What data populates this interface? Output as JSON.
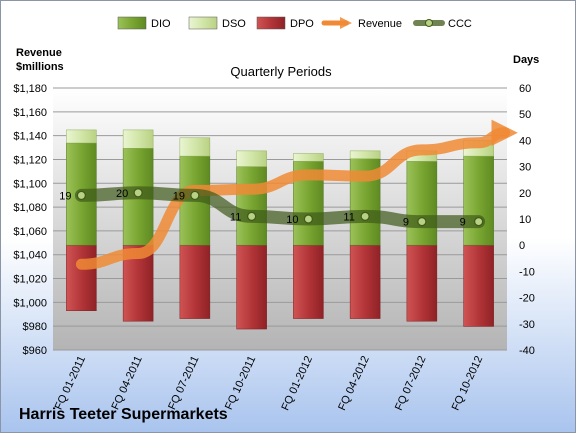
{
  "company": "Harris Teeter Supermarkets",
  "chart_data": {
    "type": "bar",
    "title": "Quarterly Periods",
    "left_axis": {
      "label_line1": "Revenue",
      "label_line2": "$millions",
      "min": 960,
      "max": 1180,
      "step": 20,
      "ticks": [
        "$960",
        "$980",
        "$1,000",
        "$1,020",
        "$1,040",
        "$1,060",
        "$1,080",
        "$1,100",
        "$1,120",
        "$1,140",
        "$1,160",
        "$1,180"
      ]
    },
    "right_axis": {
      "label": "Days",
      "min": -40,
      "max": 60,
      "step": 10,
      "ticks": [
        "-40",
        "-30",
        "-20",
        "-10",
        "0",
        "10",
        "20",
        "30",
        "40",
        "50",
        "60"
      ]
    },
    "categories": [
      "FQ 01-2011",
      "FQ 04-2011",
      "FQ 07-2011",
      "FQ 10-2011",
      "FQ 01-2012",
      "FQ 04-2012",
      "FQ 07-2012",
      "FQ 10-2012"
    ],
    "legend": [
      "DIO",
      "DSO",
      "DPO",
      "Revenue",
      "CCC"
    ],
    "legend_position": "top",
    "series": [
      {
        "name": "DIO",
        "axis": "right",
        "color": "#7da83a",
        "values": [
          39,
          37,
          34,
          30,
          32,
          33,
          32,
          34
        ]
      },
      {
        "name": "DSO",
        "axis": "right",
        "color": "#d5e8b0",
        "values": [
          5,
          7,
          7,
          6,
          3,
          3,
          4,
          6
        ]
      },
      {
        "name": "DPO",
        "axis": "right",
        "color": "#b5383a",
        "values": [
          -25,
          -29,
          -28,
          -32,
          -28,
          -28,
          -29,
          -31
        ]
      },
      {
        "name": "Revenue",
        "axis": "left",
        "color": "#f08a35",
        "values": [
          1032,
          1041,
          1094,
          1095,
          1107,
          1106,
          1128,
          1134
        ]
      },
      {
        "name": "CCC",
        "axis": "right",
        "color": "#4e6b22",
        "values": [
          19,
          20,
          19,
          11,
          10,
          11,
          9,
          9
        ],
        "labels": [
          "19",
          "20",
          "19",
          "11",
          "10",
          "11",
          "9",
          "9"
        ]
      }
    ]
  }
}
